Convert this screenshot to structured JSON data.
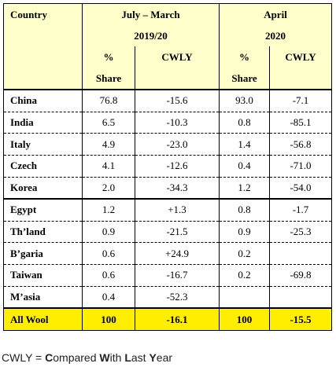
{
  "header": {
    "col_country": "Country",
    "period1_line1": "July – March",
    "period1_line2": "2019/20",
    "period2_line1": "April",
    "period2_line2": "2020",
    "share_line1": "%",
    "share_line2": "Share",
    "cwly": "CWLY"
  },
  "rows": [
    {
      "country": "China",
      "share1": "76.8",
      "cwly1": "-15.6",
      "share2": "93.0",
      "cwly2": "-7.1"
    },
    {
      "country": "India",
      "share1": "6.5",
      "cwly1": "-10.3",
      "share2": "0.8",
      "cwly2": "-85.1"
    },
    {
      "country": "Italy",
      "share1": "4.9",
      "cwly1": "-23.0",
      "share2": "1.4",
      "cwly2": "-56.8"
    },
    {
      "country": "Czech",
      "share1": "4.1",
      "cwly1": "-12.6",
      "share2": "0.4",
      "cwly2": "-71.0"
    },
    {
      "country": "Korea",
      "share1": "2.0",
      "cwly1": "-34.3",
      "share2": "1.2",
      "cwly2": "-54.0"
    },
    {
      "country": "Egypt",
      "share1": "1.2",
      "cwly1": "+1.3",
      "share2": "0.8",
      "cwly2": "-1.7"
    },
    {
      "country": "Th’land",
      "share1": "0.9",
      "cwly1": "-21.5",
      "share2": "0.9",
      "cwly2": "-25.3"
    },
    {
      "country": "B’garia",
      "share1": "0.6",
      "cwly1": "+24.9",
      "share2": "0.2",
      "cwly2": ""
    },
    {
      "country": "Taiwan",
      "share1": "0.6",
      "cwly1": "-16.7",
      "share2": "0.2",
      "cwly2": "-69.8"
    },
    {
      "country": "M’asia",
      "share1": "0.4",
      "cwly1": "-52.3",
      "share2": "",
      "cwly2": ""
    }
  ],
  "total": {
    "country": "All Wool",
    "share1": "100",
    "cwly1": "-16.1",
    "share2": "100",
    "cwly2": "-15.5"
  },
  "footnote": {
    "abbr": "CWLY",
    "eq": " = ",
    "w1_cap": "C",
    "w1_rest": "ompared ",
    "w2_cap": "W",
    "w2_rest": "ith ",
    "w3_cap": "L",
    "w3_rest": "ast ",
    "w4_cap": "Y",
    "w4_rest": "ear"
  },
  "colors": {
    "header_bg": "#ffffcc",
    "total_bg": "#ffee00"
  }
}
